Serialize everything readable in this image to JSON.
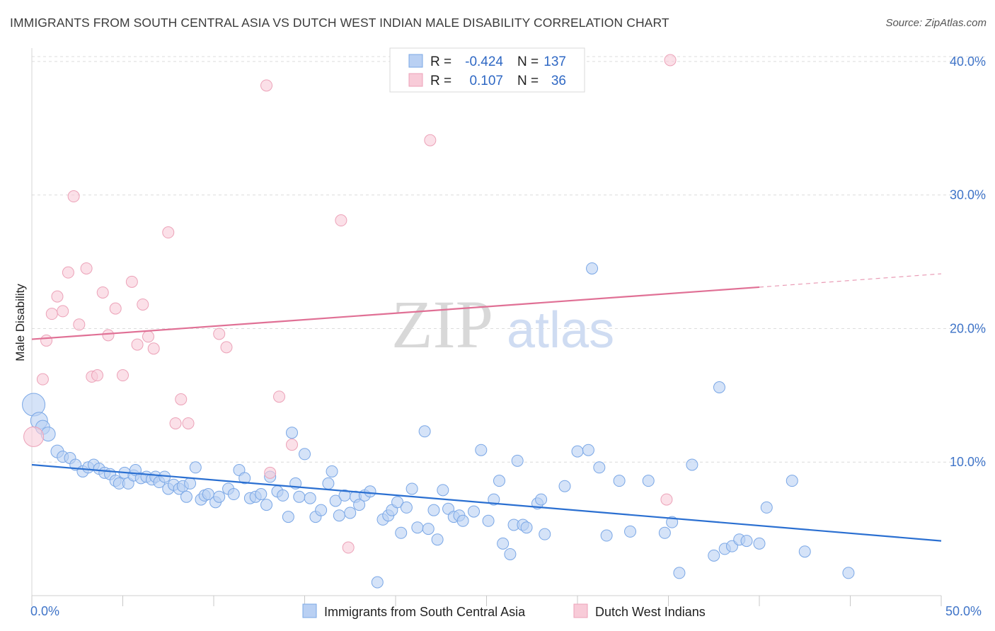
{
  "chart_data": {
    "type": "scatter",
    "title": "IMMIGRANTS FROM SOUTH CENTRAL ASIA VS DUTCH WEST INDIAN MALE DISABILITY CORRELATION CHART",
    "source": "Source: ZipAtlas.com",
    "xlabel": "",
    "ylabel": "Male Disability",
    "xlim": [
      0,
      50
    ],
    "ylim": [
      0,
      41
    ],
    "x_tick_labels": [
      "0.0%",
      "50.0%"
    ],
    "y_ticks": [
      10,
      20,
      30,
      40
    ],
    "y_tick_labels": [
      "10.0%",
      "20.0%",
      "30.0%",
      "40.0%"
    ],
    "grid": true,
    "watermark": {
      "zip": "ZIP",
      "atlas": "atlas"
    },
    "legend": {
      "entries": [
        {
          "r_label": "R =",
          "r_value": "-0.424",
          "n_label": "N =",
          "n_value": "137"
        },
        {
          "r_label": "R =",
          "r_value": "0.107",
          "n_label": "N =",
          "n_value": "36"
        }
      ]
    },
    "series": [
      {
        "name": "Immigrants from South Central Asia",
        "color": "#7aa7e6",
        "fill": "#b9d0f3",
        "trend_color": "#2a6fd1",
        "trend": {
          "x0": 0,
          "y0": 9.8,
          "x1": 50,
          "y1": 4.1
        },
        "points": [
          [
            0.1,
            14.3,
            16
          ],
          [
            0.4,
            13.1,
            12
          ],
          [
            0.6,
            12.6,
            10
          ],
          [
            0.9,
            12.1,
            10
          ],
          [
            1.4,
            10.8,
            9
          ],
          [
            1.7,
            10.4,
            8
          ],
          [
            2.1,
            10.3,
            8
          ],
          [
            2.4,
            9.8,
            8
          ],
          [
            2.8,
            9.3,
            8
          ],
          [
            3.1,
            9.6,
            8
          ],
          [
            3.4,
            9.8,
            8
          ],
          [
            3.7,
            9.5,
            8
          ],
          [
            4.0,
            9.2,
            8
          ],
          [
            4.3,
            9.1,
            8
          ],
          [
            4.6,
            8.6,
            8
          ],
          [
            4.8,
            8.4,
            8
          ],
          [
            5.1,
            9.2,
            8
          ],
          [
            5.3,
            8.4,
            8
          ],
          [
            5.6,
            9.0,
            8
          ],
          [
            5.7,
            9.4,
            8
          ],
          [
            6.0,
            8.8,
            8
          ],
          [
            6.3,
            8.9,
            8
          ],
          [
            6.6,
            8.7,
            8
          ],
          [
            6.8,
            8.9,
            8
          ],
          [
            7.0,
            8.5,
            8
          ],
          [
            7.3,
            8.9,
            8
          ],
          [
            7.5,
            8.0,
            8
          ],
          [
            7.8,
            8.3,
            8
          ],
          [
            8.1,
            8.0,
            8
          ],
          [
            8.3,
            8.2,
            8
          ],
          [
            8.5,
            7.4,
            8
          ],
          [
            8.7,
            8.4,
            8
          ],
          [
            9.0,
            9.6,
            8
          ],
          [
            9.3,
            7.2,
            8
          ],
          [
            9.5,
            7.5,
            8
          ],
          [
            9.7,
            7.6,
            8
          ],
          [
            10.1,
            7.0,
            8
          ],
          [
            10.3,
            7.4,
            8
          ],
          [
            10.8,
            8.0,
            8
          ],
          [
            11.1,
            7.6,
            8
          ],
          [
            11.4,
            9.4,
            8
          ],
          [
            11.7,
            8.8,
            8
          ],
          [
            12.0,
            7.3,
            8
          ],
          [
            12.3,
            7.4,
            8
          ],
          [
            12.6,
            7.6,
            8
          ],
          [
            12.9,
            6.8,
            8
          ],
          [
            13.1,
            8.9,
            8
          ],
          [
            13.5,
            7.8,
            8
          ],
          [
            13.8,
            7.5,
            8
          ],
          [
            14.1,
            5.9,
            8
          ],
          [
            14.3,
            12.2,
            8
          ],
          [
            14.5,
            8.4,
            8
          ],
          [
            14.7,
            7.4,
            8
          ],
          [
            15.0,
            10.6,
            8
          ],
          [
            15.3,
            7.3,
            8
          ],
          [
            15.6,
            5.9,
            8
          ],
          [
            15.9,
            6.4,
            8
          ],
          [
            16.3,
            8.4,
            8
          ],
          [
            16.5,
            9.3,
            8
          ],
          [
            16.7,
            7.1,
            8
          ],
          [
            16.9,
            6.0,
            8
          ],
          [
            17.2,
            7.5,
            8
          ],
          [
            17.5,
            6.2,
            8
          ],
          [
            17.8,
            7.4,
            8
          ],
          [
            18.0,
            6.8,
            8
          ],
          [
            18.3,
            7.5,
            8
          ],
          [
            18.6,
            7.8,
            8
          ],
          [
            19.0,
            1.0,
            8
          ],
          [
            19.3,
            5.7,
            8
          ],
          [
            19.6,
            6.0,
            8
          ],
          [
            19.8,
            6.4,
            8
          ],
          [
            20.1,
            7.0,
            8
          ],
          [
            20.3,
            4.7,
            8
          ],
          [
            20.6,
            6.6,
            8
          ],
          [
            20.9,
            8.0,
            8
          ],
          [
            21.2,
            5.1,
            8
          ],
          [
            21.6,
            12.3,
            8
          ],
          [
            21.8,
            5.0,
            8
          ],
          [
            22.1,
            6.4,
            8
          ],
          [
            22.3,
            4.2,
            8
          ],
          [
            22.6,
            7.9,
            8
          ],
          [
            22.9,
            6.5,
            8
          ],
          [
            23.2,
            5.9,
            8
          ],
          [
            23.5,
            6.0,
            8
          ],
          [
            23.7,
            5.6,
            8
          ],
          [
            24.3,
            6.3,
            8
          ],
          [
            24.7,
            10.9,
            8
          ],
          [
            25.1,
            5.6,
            8
          ],
          [
            25.4,
            7.2,
            8
          ],
          [
            25.7,
            8.6,
            8
          ],
          [
            25.9,
            3.9,
            8
          ],
          [
            26.3,
            3.1,
            8
          ],
          [
            26.5,
            5.3,
            8
          ],
          [
            26.7,
            10.1,
            8
          ],
          [
            27.0,
            5.3,
            8
          ],
          [
            27.2,
            5.1,
            8
          ],
          [
            27.8,
            6.9,
            8
          ],
          [
            28.0,
            7.2,
            8
          ],
          [
            28.2,
            4.6,
            8
          ],
          [
            29.3,
            8.2,
            8
          ],
          [
            30.0,
            10.8,
            8
          ],
          [
            30.6,
            10.9,
            8
          ],
          [
            30.8,
            24.5,
            8
          ],
          [
            31.2,
            9.6,
            8
          ],
          [
            31.6,
            4.5,
            8
          ],
          [
            32.3,
            8.6,
            8
          ],
          [
            32.9,
            4.8,
            8
          ],
          [
            33.9,
            8.6,
            8
          ],
          [
            34.8,
            4.7,
            8
          ],
          [
            35.2,
            5.5,
            8
          ],
          [
            35.6,
            1.7,
            8
          ],
          [
            36.3,
            9.8,
            8
          ],
          [
            37.5,
            3.0,
            8
          ],
          [
            37.8,
            15.6,
            8
          ],
          [
            38.1,
            3.5,
            8
          ],
          [
            38.5,
            3.7,
            8
          ],
          [
            38.9,
            4.2,
            8
          ],
          [
            39.3,
            4.1,
            8
          ],
          [
            40.0,
            3.9,
            8
          ],
          [
            40.4,
            6.6,
            8
          ],
          [
            41.8,
            8.6,
            8
          ],
          [
            42.5,
            3.3,
            8
          ],
          [
            44.9,
            1.7,
            8
          ]
        ]
      },
      {
        "name": "Dutch West Indians",
        "color": "#eca2b8",
        "fill": "#f8cbd8",
        "trend_color": "#e07095",
        "trend": {
          "x0": 0,
          "y0": 19.2,
          "x1": 40,
          "y1": 23.1
        },
        "trend_dashed": {
          "x0": 40,
          "y0": 23.1,
          "x1": 50,
          "y1": 24.1
        },
        "points": [
          [
            0.1,
            11.9,
            14
          ],
          [
            0.6,
            16.2,
            8
          ],
          [
            0.8,
            19.1,
            8
          ],
          [
            1.1,
            21.1,
            8
          ],
          [
            1.4,
            22.4,
            8
          ],
          [
            1.7,
            21.3,
            8
          ],
          [
            2.0,
            24.2,
            8
          ],
          [
            2.3,
            29.9,
            8
          ],
          [
            2.6,
            20.3,
            8
          ],
          [
            3.0,
            24.5,
            8
          ],
          [
            3.3,
            16.4,
            8
          ],
          [
            3.6,
            16.5,
            8
          ],
          [
            3.9,
            22.7,
            8
          ],
          [
            4.2,
            19.5,
            8
          ],
          [
            4.6,
            21.5,
            8
          ],
          [
            5.0,
            16.5,
            8
          ],
          [
            5.5,
            23.5,
            8
          ],
          [
            5.8,
            18.8,
            8
          ],
          [
            6.1,
            21.8,
            8
          ],
          [
            6.4,
            19.4,
            8
          ],
          [
            6.7,
            18.5,
            8
          ],
          [
            7.5,
            27.2,
            8
          ],
          [
            7.9,
            12.9,
            8
          ],
          [
            8.2,
            14.7,
            8
          ],
          [
            8.6,
            12.9,
            8
          ],
          [
            10.3,
            19.6,
            8
          ],
          [
            10.7,
            18.6,
            8
          ],
          [
            12.9,
            38.2,
            8
          ],
          [
            13.1,
            9.2,
            8
          ],
          [
            13.6,
            14.9,
            8
          ],
          [
            14.3,
            11.3,
            8
          ],
          [
            17.0,
            28.1,
            8
          ],
          [
            17.4,
            3.6,
            8
          ],
          [
            21.9,
            34.1,
            8
          ],
          [
            34.9,
            7.2,
            8
          ],
          [
            35.1,
            40.1,
            8
          ]
        ]
      }
    ]
  }
}
